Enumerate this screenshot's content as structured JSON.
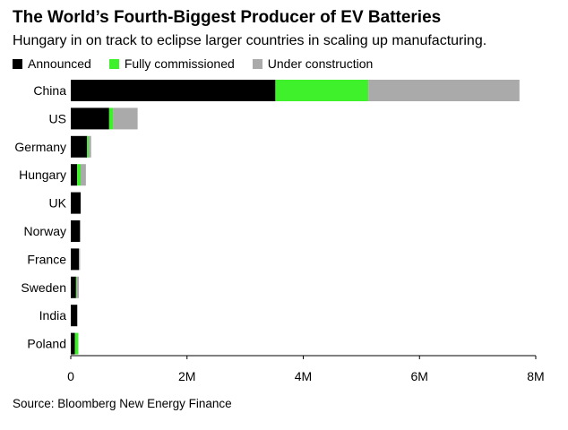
{
  "header": {
    "title": "The World’s Fourth-Biggest Producer of EV Batteries",
    "subtitle": "Hungary in on track to eclipse larger countries in scaling up manufacturing."
  },
  "legend": {
    "items": [
      {
        "label": "Announced",
        "color": "#000000"
      },
      {
        "label": "Fully commissioned",
        "color": "#3ff12b"
      },
      {
        "label": "Under construction",
        "color": "#aaaaaa"
      }
    ]
  },
  "footer": {
    "source": "Source: Bloomberg New Energy Finance"
  },
  "chart_data": {
    "type": "bar",
    "orientation": "horizontal",
    "stacked": true,
    "title": "The World’s Fourth-Biggest Producer of EV Batteries",
    "subtitle": "Hungary in on track to eclipse larger countries in scaling up manufacturing.",
    "xlabel": "",
    "ylabel": "",
    "xlim": [
      0,
      8000000
    ],
    "x_ticks": [
      0,
      2000000,
      4000000,
      6000000,
      8000000
    ],
    "x_tick_labels": [
      "0",
      "2M",
      "4M",
      "6M",
      "8M"
    ],
    "grid": false,
    "legend_position": "top-left",
    "categories": [
      "China",
      "US",
      "Germany",
      "Hungary",
      "UK",
      "Norway",
      "France",
      "Sweden",
      "India",
      "Poland"
    ],
    "series": [
      {
        "name": "Announced",
        "color": "#000000",
        "values": [
          3520000,
          660000,
          280000,
          110000,
          170000,
          160000,
          140000,
          90000,
          110000,
          70000
        ]
      },
      {
        "name": "Fully commissioned",
        "color": "#3ff12b",
        "values": [
          1600000,
          70000,
          30000,
          60000,
          0,
          0,
          0,
          10000,
          0,
          60000
        ]
      },
      {
        "name": "Under construction",
        "color": "#aaaaaa",
        "values": [
          2600000,
          420000,
          40000,
          90000,
          0,
          0,
          20000,
          40000,
          10000,
          0
        ]
      }
    ]
  }
}
